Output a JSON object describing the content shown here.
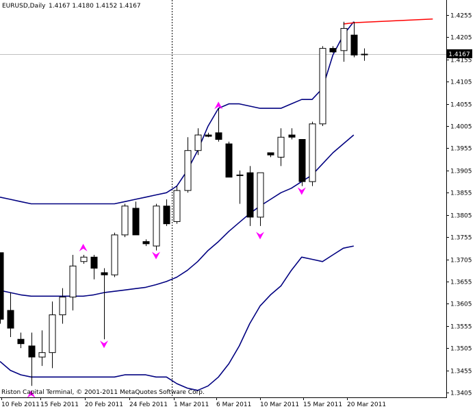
{
  "header": {
    "symbol": "EURUSD,Daily",
    "ohlc": "1.4167 1.4180 1.4152 1.4167"
  },
  "footer": {
    "copyright": "Riston Capital Terminal, © 2001-2011 MetaQuotes Software Corp."
  },
  "colors": {
    "background": "#ffffff",
    "candle": "#000000",
    "bands": "#000080",
    "trendline": "#ff0000",
    "arrows": "#ff00ff",
    "bid_line": "#c0c0c0"
  },
  "chart_data": {
    "type": "candlestick",
    "title": "",
    "xlabel": "",
    "ylabel": "",
    "ylim": [
      1.3395,
      1.4275
    ],
    "y_ticks": [
      "1.4255",
      "1.4205",
      "1.4155",
      "1.4105",
      "1.4055",
      "1.4005",
      "1.3955",
      "1.3905",
      "1.3855",
      "1.3805",
      "1.3755",
      "1.3705",
      "1.3655",
      "1.3605",
      "1.3555",
      "1.3505",
      "1.3455",
      "1.3405"
    ],
    "x_labels": [
      "10 Feb 2011",
      "15 Feb 2011",
      "20 Feb 2011",
      "24 Feb 2011",
      "1 Mar 2011",
      "6 Mar 2011",
      "10 Mar 2011",
      "15 Mar 2011",
      "20 Mar 2011"
    ],
    "last_price": "1.4167",
    "candles": [
      {
        "o": 1.372,
        "h": 1.372,
        "l": 1.356,
        "c": 1.357
      },
      {
        "o": 1.359,
        "h": 1.363,
        "l": 1.353,
        "c": 1.355
      },
      {
        "o": 1.3525,
        "h": 1.354,
        "l": 1.3505,
        "c": 1.3515
      },
      {
        "o": 1.351,
        "h": 1.354,
        "l": 1.342,
        "c": 1.3485
      },
      {
        "o": 1.3485,
        "h": 1.3545,
        "l": 1.3465,
        "c": 1.3495
      },
      {
        "o": 1.3495,
        "h": 1.361,
        "l": 1.346,
        "c": 1.358
      },
      {
        "o": 1.358,
        "h": 1.364,
        "l": 1.356,
        "c": 1.362
      },
      {
        "o": 1.362,
        "h": 1.3715,
        "l": 1.359,
        "c": 1.369
      },
      {
        "o": 1.37,
        "h": 1.3715,
        "l": 1.3695,
        "c": 1.371
      },
      {
        "o": 1.371,
        "h": 1.3715,
        "l": 1.366,
        "c": 1.3685
      },
      {
        "o": 1.3675,
        "h": 1.3685,
        "l": 1.3525,
        "c": 1.367
      },
      {
        "o": 1.367,
        "h": 1.3765,
        "l": 1.3665,
        "c": 1.376
      },
      {
        "o": 1.376,
        "h": 1.383,
        "l": 1.3755,
        "c": 1.3825
      },
      {
        "o": 1.382,
        "h": 1.3835,
        "l": 1.376,
        "c": 1.376
      },
      {
        "o": 1.3745,
        "h": 1.375,
        "l": 1.3735,
        "c": 1.374
      },
      {
        "o": 1.3735,
        "h": 1.383,
        "l": 1.3725,
        "c": 1.3825
      },
      {
        "o": 1.3825,
        "h": 1.384,
        "l": 1.378,
        "c": 1.3785
      },
      {
        "o": 1.379,
        "h": 1.387,
        "l": 1.3785,
        "c": 1.386
      },
      {
        "o": 1.386,
        "h": 1.398,
        "l": 1.3855,
        "c": 1.395
      },
      {
        "o": 1.395,
        "h": 1.4,
        "l": 1.394,
        "c": 1.3985
      },
      {
        "o": 1.3985,
        "h": 1.399,
        "l": 1.398,
        "c": 1.3982
      },
      {
        "o": 1.399,
        "h": 1.4045,
        "l": 1.397,
        "c": 1.3975
      },
      {
        "o": 1.3965,
        "h": 1.397,
        "l": 1.389,
        "c": 1.389
      },
      {
        "o": 1.3895,
        "h": 1.3905,
        "l": 1.383,
        "c": 1.3895
      },
      {
        "o": 1.39,
        "h": 1.3915,
        "l": 1.378,
        "c": 1.38
      },
      {
        "o": 1.38,
        "h": 1.39,
        "l": 1.378,
        "c": 1.39
      },
      {
        "o": 1.3945,
        "h": 1.3945,
        "l": 1.3935,
        "c": 1.394
      },
      {
        "o": 1.3935,
        "h": 1.4,
        "l": 1.3915,
        "c": 1.398
      },
      {
        "o": 1.3985,
        "h": 1.4,
        "l": 1.3975,
        "c": 1.398
      },
      {
        "o": 1.3975,
        "h": 1.3975,
        "l": 1.387,
        "c": 1.388
      },
      {
        "o": 1.388,
        "h": 1.4015,
        "l": 1.387,
        "c": 1.401
      },
      {
        "o": 1.401,
        "h": 1.4185,
        "l": 1.4005,
        "c": 1.418
      },
      {
        "o": 1.418,
        "h": 1.4185,
        "l": 1.417,
        "c": 1.4172
      },
      {
        "o": 1.4175,
        "h": 1.424,
        "l": 1.415,
        "c": 1.4225
      },
      {
        "o": 1.421,
        "h": 1.424,
        "l": 1.416,
        "c": 1.4165
      },
      {
        "o": 1.4167,
        "h": 1.418,
        "l": 1.4152,
        "c": 1.4167
      }
    ],
    "upper_band": [
      1.3845,
      1.384,
      1.3835,
      1.383,
      1.383,
      1.383,
      1.383,
      1.383,
      1.383,
      1.383,
      1.383,
      1.383,
      1.3835,
      1.384,
      1.3845,
      1.385,
      1.3855,
      1.387,
      1.3905,
      1.395,
      1.4005,
      1.4045,
      1.4055,
      1.4055,
      1.405,
      1.4045,
      1.4045,
      1.4045,
      1.4055,
      1.4065,
      1.4065,
      1.409,
      1.4165,
      1.421,
      1.424
    ],
    "middle_band": [
      1.3635,
      1.363,
      1.3625,
      1.3622,
      1.3622,
      1.3622,
      1.3622,
      1.3622,
      1.3622,
      1.3625,
      1.363,
      1.3633,
      1.3636,
      1.3639,
      1.3642,
      1.3648,
      1.3655,
      1.3665,
      1.368,
      1.37,
      1.3725,
      1.3745,
      1.3768,
      1.3788,
      1.3808,
      1.3825,
      1.384,
      1.3855,
      1.3865,
      1.388,
      1.3895,
      1.392,
      1.3945,
      1.3965,
      1.3985
    ],
    "lower_band": [
      1.3475,
      1.3455,
      1.3445,
      1.344,
      1.344,
      1.344,
      1.344,
      1.344,
      1.344,
      1.344,
      1.344,
      1.344,
      1.3445,
      1.3445,
      1.3445,
      1.344,
      1.344,
      1.3425,
      1.3415,
      1.341,
      1.342,
      1.344,
      1.347,
      1.351,
      1.356,
      1.36,
      1.3625,
      1.3645,
      1.368,
      1.371,
      1.3705,
      1.37,
      1.3715,
      1.373,
      1.3735
    ],
    "arrows_up": [
      {
        "bar": 3,
        "price": 1.341
      },
      {
        "bar": 8,
        "price": 1.374
      },
      {
        "bar": 21,
        "price": 1.406
      }
    ],
    "arrows_down": [
      {
        "bar": 10,
        "price": 1.3505
      },
      {
        "bar": 15,
        "price": 1.3705
      },
      {
        "bar": 25,
        "price": 1.375
      },
      {
        "bar": 29,
        "price": 1.385
      }
    ],
    "trendline": [
      {
        "bar": 33,
        "price": 1.4235
      },
      {
        "bar": 34.2,
        "price": 1.4238
      },
      {
        "bar": 41.6,
        "price": 1.4246
      }
    ],
    "vline_bar": 16.5
  }
}
